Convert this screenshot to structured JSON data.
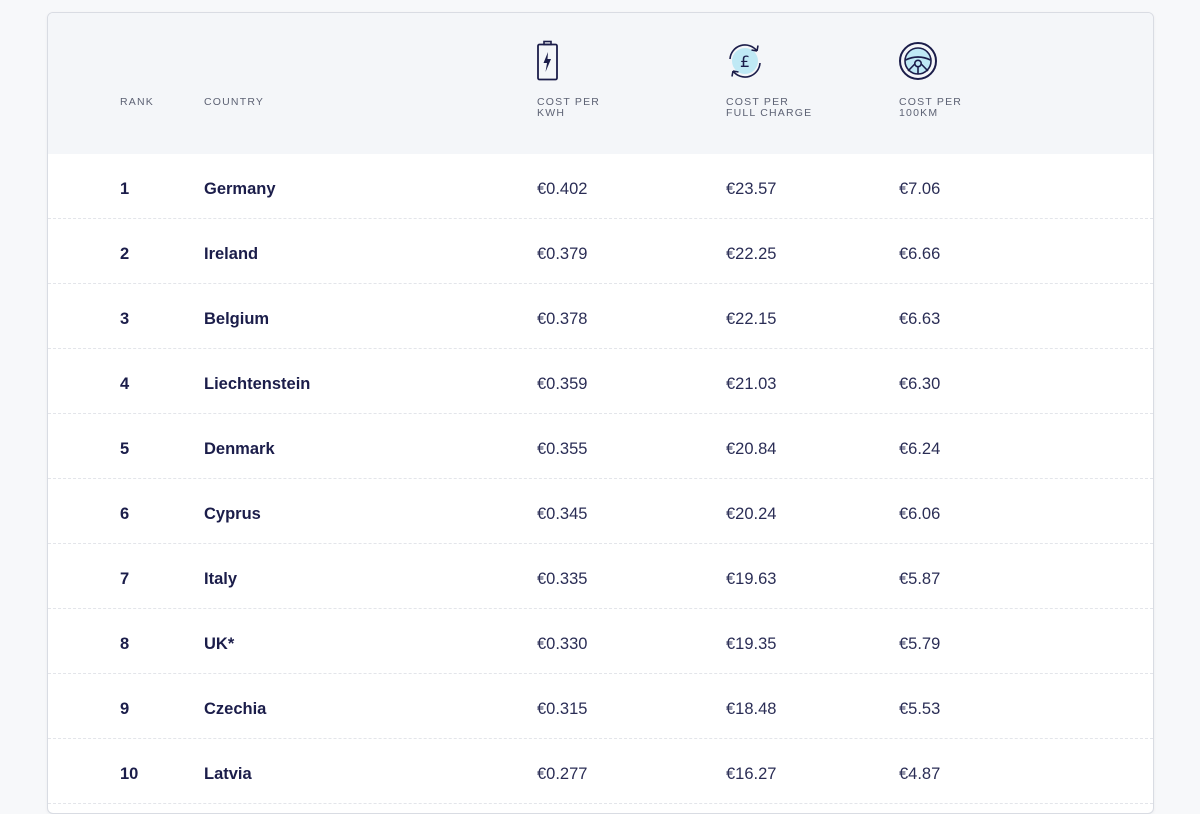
{
  "headers": {
    "rank": "RANK",
    "country": "COUNTRY",
    "kwh": [
      "COST PER",
      "KWH"
    ],
    "full": [
      "COST PER",
      "FULL CHARGE"
    ],
    "km": [
      "COST PER",
      "100KM"
    ]
  },
  "icons": {
    "kwh": "battery-charge-icon",
    "full": "pound-cycle-icon",
    "km": "steering-wheel-icon"
  },
  "colors": {
    "text": "#1b1d4a",
    "header_bg": "#f4f6f9",
    "icon_accent": "#bfe9f5"
  },
  "rows": [
    {
      "rank": "1",
      "country": "Germany",
      "kwh": "€0.402",
      "full": "€23.57",
      "km": "€7.06"
    },
    {
      "rank": "2",
      "country": "Ireland",
      "kwh": "€0.379",
      "full": "€22.25",
      "km": "€6.66"
    },
    {
      "rank": "3",
      "country": "Belgium",
      "kwh": "€0.378",
      "full": "€22.15",
      "km": "€6.63"
    },
    {
      "rank": "4",
      "country": "Liechtenstein",
      "kwh": "€0.359",
      "full": "€21.03",
      "km": "€6.30"
    },
    {
      "rank": "5",
      "country": "Denmark",
      "kwh": "€0.355",
      "full": "€20.84",
      "km": "€6.24"
    },
    {
      "rank": "6",
      "country": "Cyprus",
      "kwh": "€0.345",
      "full": "€20.24",
      "km": "€6.06"
    },
    {
      "rank": "7",
      "country": "Italy",
      "kwh": "€0.335",
      "full": "€19.63",
      "km": "€5.87"
    },
    {
      "rank": "8",
      "country": "UK*",
      "kwh": "€0.330",
      "full": "€19.35",
      "km": "€5.79"
    },
    {
      "rank": "9",
      "country": "Czechia",
      "kwh": "€0.315",
      "full": "€18.48",
      "km": "€5.53"
    },
    {
      "rank": "10",
      "country": "Latvia",
      "kwh": "€0.277",
      "full": "€16.27",
      "km": "€4.87"
    }
  ]
}
